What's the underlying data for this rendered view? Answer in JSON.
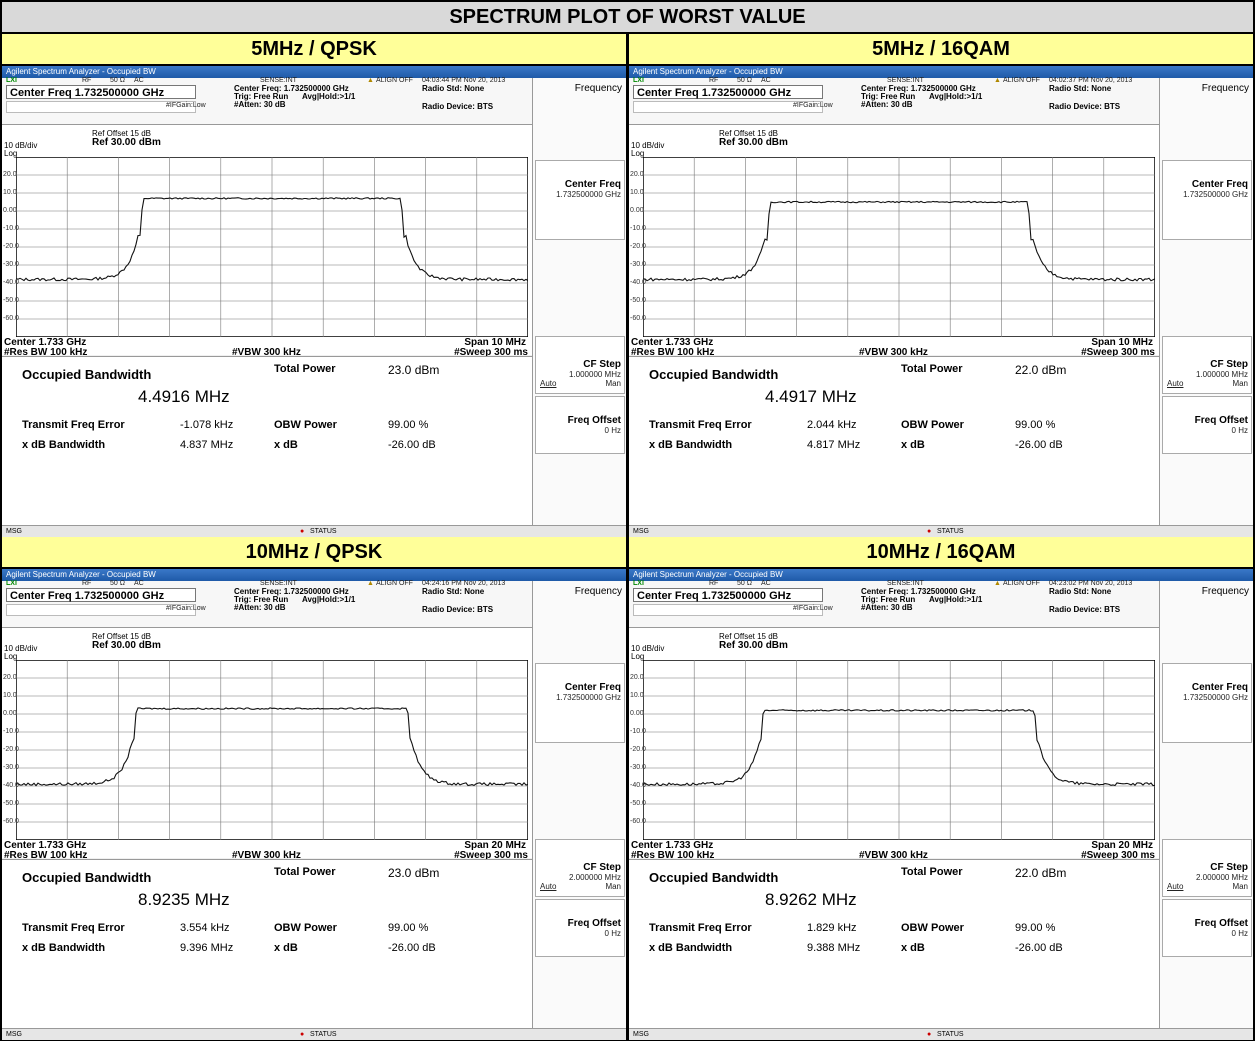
{
  "title": "SPECTRUM PLOT OF WORST VALUE",
  "common": {
    "window_title": "Agilent Spectrum Analyzer - Occupied BW",
    "rf": "RF",
    "impedance": "50 Ω",
    "coupling": "AC",
    "sense": "SENSE:INT",
    "align": "ALIGN OFF",
    "center_freq_box": "Center Freq 1.732500000 GHz",
    "center_freq_line": "Center Freq: 1.732500000 GHz",
    "trig": "Trig: Free Run",
    "avg_hold": "Avg|Hold:>1/1",
    "atten": "#Atten: 30 dB",
    "ifgain": "#IFGain:Low",
    "radio_std": "Radio Std: None",
    "radio_device": "Radio Device: BTS",
    "ref_offset": "Ref Offset 15 dB",
    "ref_level": "Ref 30.00 dBm",
    "db_div": "10 dB/div",
    "log": "Log",
    "y_ticks": [
      "20.0",
      "10.0",
      "0.00",
      "-10.0",
      "-20.0",
      "-30.0",
      "-40.0",
      "-50.0",
      "-60.0"
    ],
    "center_bottom": "Center  1.733 GHz",
    "res_bw": "#Res BW  100 kHz",
    "vbw": "#VBW  300 kHz",
    "sweep": "#Sweep  300 ms",
    "softkey_frequency": "Frequency",
    "softkey_center_freq": "Center Freq",
    "softkey_center_freq_val": "1.732500000 GHz",
    "softkey_cf_step": "CF Step",
    "softkey_auto": "Auto",
    "softkey_man": "Man",
    "softkey_freq_offset": "Freq Offset",
    "softkey_freq_offset_val": "0 Hz",
    "lbl_occupied_bw": "Occupied Bandwidth",
    "lbl_total_power": "Total Power",
    "lbl_transmit_freq_error": "Transmit Freq Error",
    "lbl_obw_power": "OBW Power",
    "lbl_xdb_bandwidth": "x dB Bandwidth",
    "lbl_xdb": "x dB",
    "obw_power_val": "99.00 %",
    "xdb_val": "-26.00 dB",
    "msg": "MSG",
    "status": "STATUS"
  },
  "panels": [
    {
      "label": "5MHz / QPSK",
      "timestamp": "04:03:44 PM Nov 20, 2013",
      "span": "Span 10 MHz",
      "cf_step_val": "1.000000 MHz",
      "occupied_bw": "4.4916 MHz",
      "total_power": "23.0 dBm",
      "freq_error": "-1.078 kHz",
      "xdb_bw": "4.837 MHz",
      "trace": {
        "floor_db": -38,
        "top_db": 7,
        "edge_frac": 0.248
      }
    },
    {
      "label": "5MHz / 16QAM",
      "timestamp": "04:02:37 PM Nov 20, 2013",
      "span": "Span 10 MHz",
      "cf_step_val": "1.000000 MHz",
      "occupied_bw": "4.4917 MHz",
      "total_power": "22.0 dBm",
      "freq_error": "2.044 kHz",
      "xdb_bw": "4.817 MHz",
      "trace": {
        "floor_db": -38,
        "top_db": 5,
        "edge_frac": 0.248
      }
    },
    {
      "label": "10MHz / QPSK",
      "timestamp": "04:24:16 PM Nov 20, 2013",
      "span": "Span 20 MHz",
      "cf_step_val": "2.000000 MHz",
      "occupied_bw": "8.9235 MHz",
      "total_power": "23.0 dBm",
      "freq_error": "3.554 kHz",
      "xdb_bw": "9.396 MHz",
      "trace": {
        "floor_db": -39,
        "top_db": 3,
        "edge_frac": 0.235
      }
    },
    {
      "label": "10MHz / 16QAM",
      "timestamp": "04:23:02 PM Nov 20, 2013",
      "span": "Span 20 MHz",
      "cf_step_val": "2.000000 MHz",
      "occupied_bw": "8.9262 MHz",
      "total_power": "22.0 dBm",
      "freq_error": "1.829 kHz",
      "xdb_bw": "9.388 MHz",
      "trace": {
        "floor_db": -39,
        "top_db": 2,
        "edge_frac": 0.235
      }
    }
  ]
}
